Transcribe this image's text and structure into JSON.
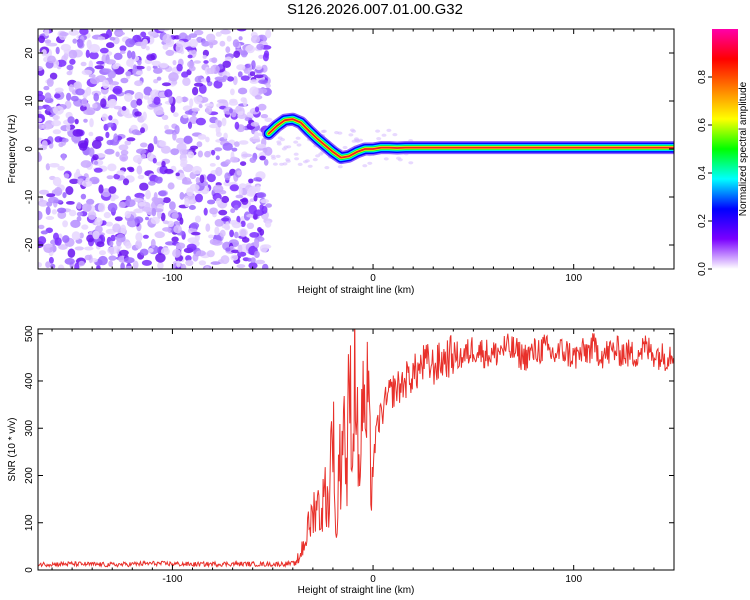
{
  "title": "S126.2026.007.01.00.G32",
  "colors": {
    "snr_line": "#e8302a",
    "track_core": "#ee2222",
    "noise": "#7a2cff",
    "frame": "#000000"
  },
  "chart_data": [
    {
      "id": "spectrogram",
      "type": "heatmap",
      "title": "S126.2026.007.01.00.G32",
      "xlabel": "Height of straight line (km)",
      "ylabel": "Frequency (Hz)",
      "xlim": [
        -167,
        150
      ],
      "ylim": [
        -25,
        25
      ],
      "xticks": [
        -100,
        0,
        100
      ],
      "yticks": [
        -20,
        -10,
        0,
        10,
        20
      ],
      "noise_region": {
        "x_range": [
          -167,
          -52
        ],
        "y_range": [
          -25,
          25
        ],
        "color": "noise"
      },
      "track": {
        "x": [
          -52,
          -48,
          -44,
          -40,
          -36,
          -32,
          -28,
          -24,
          -20,
          -16,
          -12,
          -8,
          -4,
          0,
          4,
          8,
          12,
          16,
          20,
          30,
          50,
          80,
          110,
          150
        ],
        "freq": [
          3.2,
          4.8,
          6.0,
          6.2,
          5.5,
          3.8,
          2.2,
          0.8,
          -0.6,
          -1.8,
          -1.5,
          -0.6,
          0.0,
          0.0,
          0.3,
          0.3,
          0.2,
          0.3,
          0.3,
          0.3,
          0.3,
          0.3,
          0.3,
          0.3
        ]
      },
      "colorbar": {
        "label": "Normalized spectral amplitude",
        "ticks": [
          "0.0",
          "0.2",
          "0.4",
          "0.6",
          "0.8"
        ],
        "range": [
          0,
          1
        ],
        "stops": [
          "#ffffff",
          "#7a00ff",
          "#0000ff",
          "#00ffff",
          "#00ff00",
          "#ffff00",
          "#ff8000",
          "#ff0000",
          "#ff00aa"
        ]
      }
    },
    {
      "id": "snr",
      "type": "line",
      "xlabel": "Height of straight line (km)",
      "ylabel": "SNR (10 * v/v)",
      "xlim": [
        -167,
        150
      ],
      "ylim": [
        0,
        510
      ],
      "xticks": [
        -100,
        0,
        100
      ],
      "yticks": [
        0,
        100,
        200,
        300,
        400,
        500
      ],
      "series": [
        {
          "name": "SNR",
          "color": "snr_line",
          "x": [
            -167,
            -150,
            -130,
            -110,
            -90,
            -70,
            -50,
            -38,
            -35,
            -32,
            -30,
            -28,
            -26,
            -24,
            -22,
            -21,
            -20,
            -19,
            -18,
            -17,
            -16,
            -15,
            -14,
            -13,
            -12,
            -11,
            -10,
            -9,
            -8,
            -7,
            -6,
            -5,
            -4,
            -3,
            -2,
            -1,
            0,
            2,
            4,
            6,
            8,
            10,
            14,
            18,
            22,
            26,
            30,
            35,
            40,
            45,
            50,
            55,
            60,
            65,
            70,
            75,
            80,
            85,
            90,
            95,
            100,
            105,
            110,
            115,
            120,
            125,
            130,
            135,
            140,
            145,
            150
          ],
          "y": [
            12,
            13,
            11,
            14,
            12,
            13,
            12,
            14,
            50,
            90,
            120,
            150,
            110,
            170,
            130,
            250,
            330,
            150,
            40,
            260,
            200,
            340,
            300,
            160,
            420,
            350,
            230,
            480,
            320,
            180,
            280,
            400,
            260,
            360,
            310,
            180,
            230,
            300,
            330,
            350,
            370,
            380,
            390,
            410,
            420,
            440,
            430,
            445,
            455,
            450,
            470,
            460,
            455,
            470,
            465,
            450,
            460,
            470,
            455,
            465,
            450,
            460,
            470,
            455,
            465,
            460,
            455,
            470,
            460,
            450,
            465
          ]
        }
      ]
    }
  ]
}
